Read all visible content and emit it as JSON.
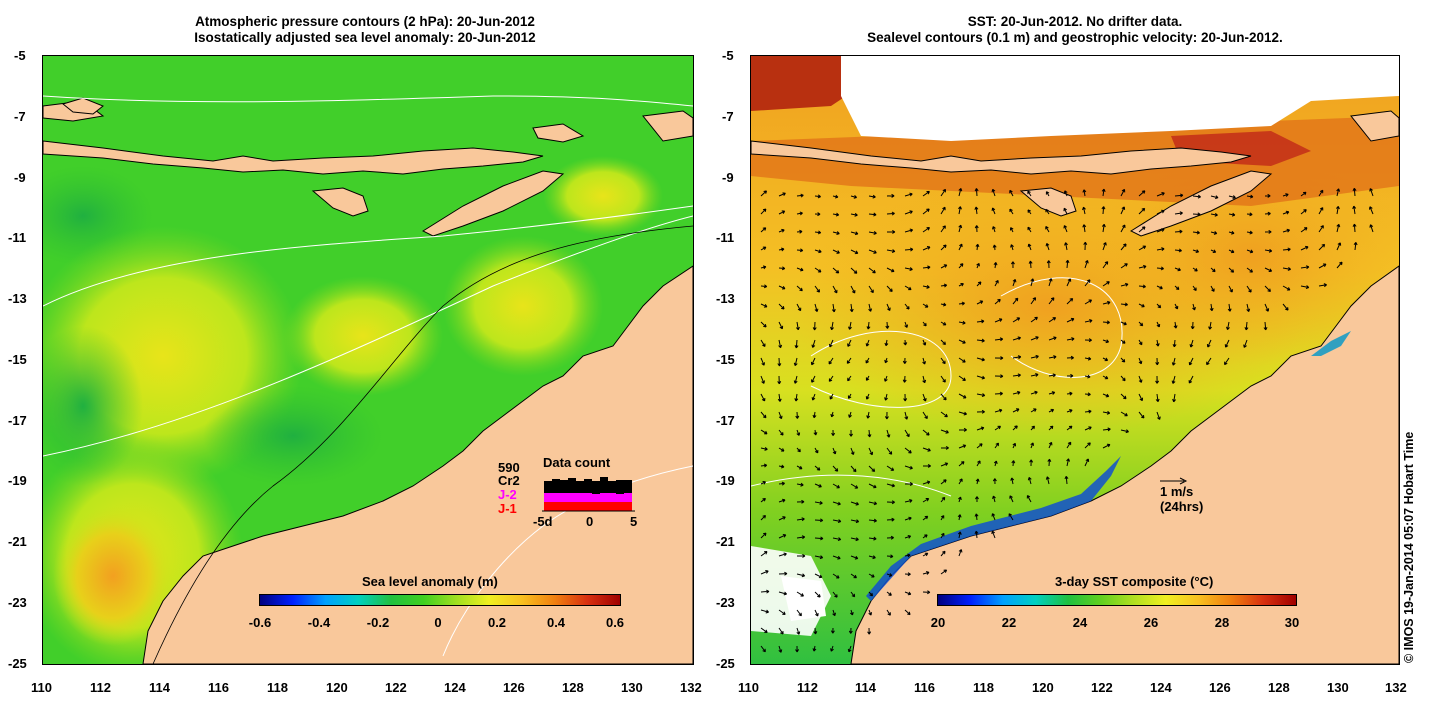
{
  "left_panel": {
    "title_line1": "Atmospheric pressure contours (2 hPa): 20-Jun-2012",
    "title_line2": "Isostatically adjusted sea level anomaly: 20-Jun-2012",
    "y_ticks": [
      "-5",
      "-7",
      "-9",
      "-11",
      "-13",
      "-15",
      "-17",
      "-19",
      "-21",
      "-23",
      "-25"
    ],
    "x_ticks": [
      "110",
      "112",
      "114",
      "116",
      "118",
      "120",
      "122",
      "124",
      "126",
      "128",
      "130",
      "132"
    ],
    "colorbar": {
      "title": "Sea level anomaly (m)",
      "labels": [
        "-0.6",
        "-0.4",
        "-0.2",
        "0",
        "0.2",
        "0.4",
        "0.6"
      ]
    },
    "data_count": {
      "title": "Data count",
      "count": "590",
      "missions": [
        "Cr2",
        "J-2",
        "J-1"
      ],
      "mission_colors": [
        "#000000",
        "#ff00ff",
        "#ff0000"
      ],
      "axis_labels": [
        "-5d",
        "0",
        "5"
      ]
    }
  },
  "right_panel": {
    "title_line1": "SST: 20-Jun-2012. No drifter data.",
    "title_line2": "Sealevel contours (0.1 m) and geostrophic velocity: 20-Jun-2012.",
    "y_ticks": [
      "-5",
      "-7",
      "-9",
      "-11",
      "-13",
      "-15",
      "-17",
      "-19",
      "-21",
      "-23",
      "-25"
    ],
    "x_ticks": [
      "110",
      "112",
      "114",
      "116",
      "118",
      "120",
      "122",
      "124",
      "126",
      "128",
      "130",
      "132"
    ],
    "colorbar": {
      "title": "3-day SST composite (°C)",
      "labels": [
        "20",
        "22",
        "24",
        "26",
        "28",
        "30"
      ]
    },
    "velocity_key": {
      "line1": "1 m/s",
      "line2": "(24hrs)"
    }
  },
  "credit": "© IMOS 19-Jan-2014 05:07 Hobart Time",
  "colors": {
    "land": "#f9c89b",
    "ocean_green": "#3fd12a",
    "ocean_yellow": "#c8ea1a",
    "sst_orange": "#f0b420",
    "sst_red": "#c83010",
    "sst_blue": "#1050d0"
  }
}
